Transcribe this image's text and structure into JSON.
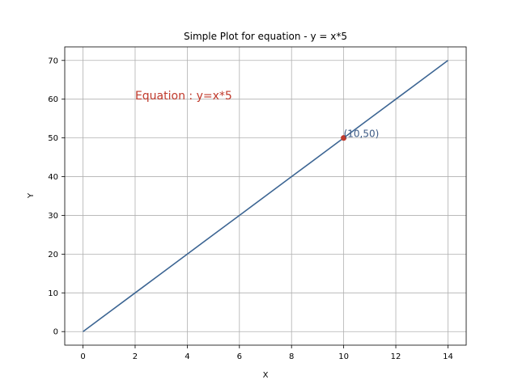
{
  "chart_data": {
    "type": "line",
    "title": "Simple Plot for equation - y = x*5",
    "xlabel": "X",
    "ylabel": "Y",
    "xlim": [
      -0.7,
      14.7
    ],
    "ylim": [
      -3.5,
      73.5
    ],
    "xticks": [
      0,
      2,
      4,
      6,
      8,
      10,
      12,
      14
    ],
    "yticks": [
      0,
      10,
      20,
      30,
      40,
      50,
      60,
      70
    ],
    "grid": true,
    "series": [
      {
        "x": [
          0,
          1,
          2,
          3,
          4,
          5,
          6,
          7,
          8,
          9,
          10,
          11,
          12,
          13,
          14
        ],
        "y": [
          0,
          5,
          10,
          15,
          20,
          25,
          30,
          35,
          40,
          45,
          50,
          55,
          60,
          65,
          70
        ],
        "color": "#3c6593"
      }
    ],
    "highlight_point": {
      "x": 10,
      "y": 50,
      "color": "#c0392b"
    },
    "annotations": [
      {
        "text": "(10,50)",
        "x": 10,
        "y": 50,
        "color": "#3c5a84"
      },
      {
        "text": "Equation : y=x*5",
        "x": 2,
        "y": 60,
        "color": "#c0392b"
      }
    ]
  }
}
